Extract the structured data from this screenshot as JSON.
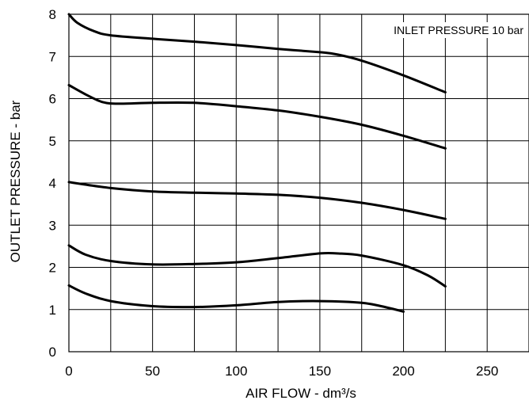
{
  "chart_data": {
    "type": "line",
    "title": "",
    "xlabel": "AIR FLOW - dm³/s",
    "ylabel": "OUTLET PRESSURE - bar",
    "annotation": "INLET PRESSURE 10 bar",
    "xlim": [
      0,
      275
    ],
    "ylim": [
      0,
      8
    ],
    "xticks": [
      0,
      50,
      100,
      150,
      200,
      250
    ],
    "yticks": [
      0,
      1,
      2,
      3,
      4,
      5,
      6,
      7,
      8
    ],
    "xtick_labels": [
      "0",
      "50",
      "100",
      "150",
      "200",
      "250"
    ],
    "ytick_labels": [
      "0",
      "1",
      "2",
      "3",
      "4",
      "5",
      "6",
      "7",
      "8"
    ],
    "grid_x": [
      0,
      25,
      50,
      75,
      100,
      125,
      150,
      175,
      200,
      225,
      250,
      275
    ],
    "grid_y": [
      0,
      1,
      2,
      3,
      4,
      5,
      6,
      7,
      8
    ],
    "grid": true,
    "legend": "none",
    "line_color": "#000000",
    "series": [
      {
        "x": [
          0,
          5,
          15,
          25,
          50,
          75,
          100,
          125,
          150,
          160,
          175,
          200,
          225
        ],
        "values": [
          8.0,
          7.8,
          7.6,
          7.5,
          7.42,
          7.35,
          7.27,
          7.18,
          7.1,
          7.05,
          6.9,
          6.55,
          6.15
        ]
      },
      {
        "x": [
          0,
          10,
          20,
          30,
          50,
          75,
          100,
          125,
          150,
          175,
          200,
          225
        ],
        "values": [
          6.32,
          6.1,
          5.92,
          5.88,
          5.9,
          5.9,
          5.82,
          5.72,
          5.57,
          5.38,
          5.12,
          4.82
        ]
      },
      {
        "x": [
          0,
          25,
          50,
          75,
          100,
          125,
          150,
          175,
          200,
          225
        ],
        "values": [
          4.02,
          3.88,
          3.8,
          3.77,
          3.75,
          3.72,
          3.65,
          3.53,
          3.36,
          3.15
        ]
      },
      {
        "x": [
          0,
          10,
          25,
          50,
          75,
          100,
          125,
          150,
          160,
          175,
          200,
          215,
          225
        ],
        "values": [
          2.52,
          2.3,
          2.15,
          2.07,
          2.08,
          2.12,
          2.22,
          2.33,
          2.33,
          2.28,
          2.05,
          1.8,
          1.55
        ]
      },
      {
        "x": [
          0,
          10,
          25,
          50,
          75,
          100,
          125,
          150,
          175,
          190,
          200
        ],
        "values": [
          1.57,
          1.38,
          1.2,
          1.08,
          1.06,
          1.1,
          1.18,
          1.2,
          1.16,
          1.05,
          0.95
        ]
      }
    ]
  }
}
